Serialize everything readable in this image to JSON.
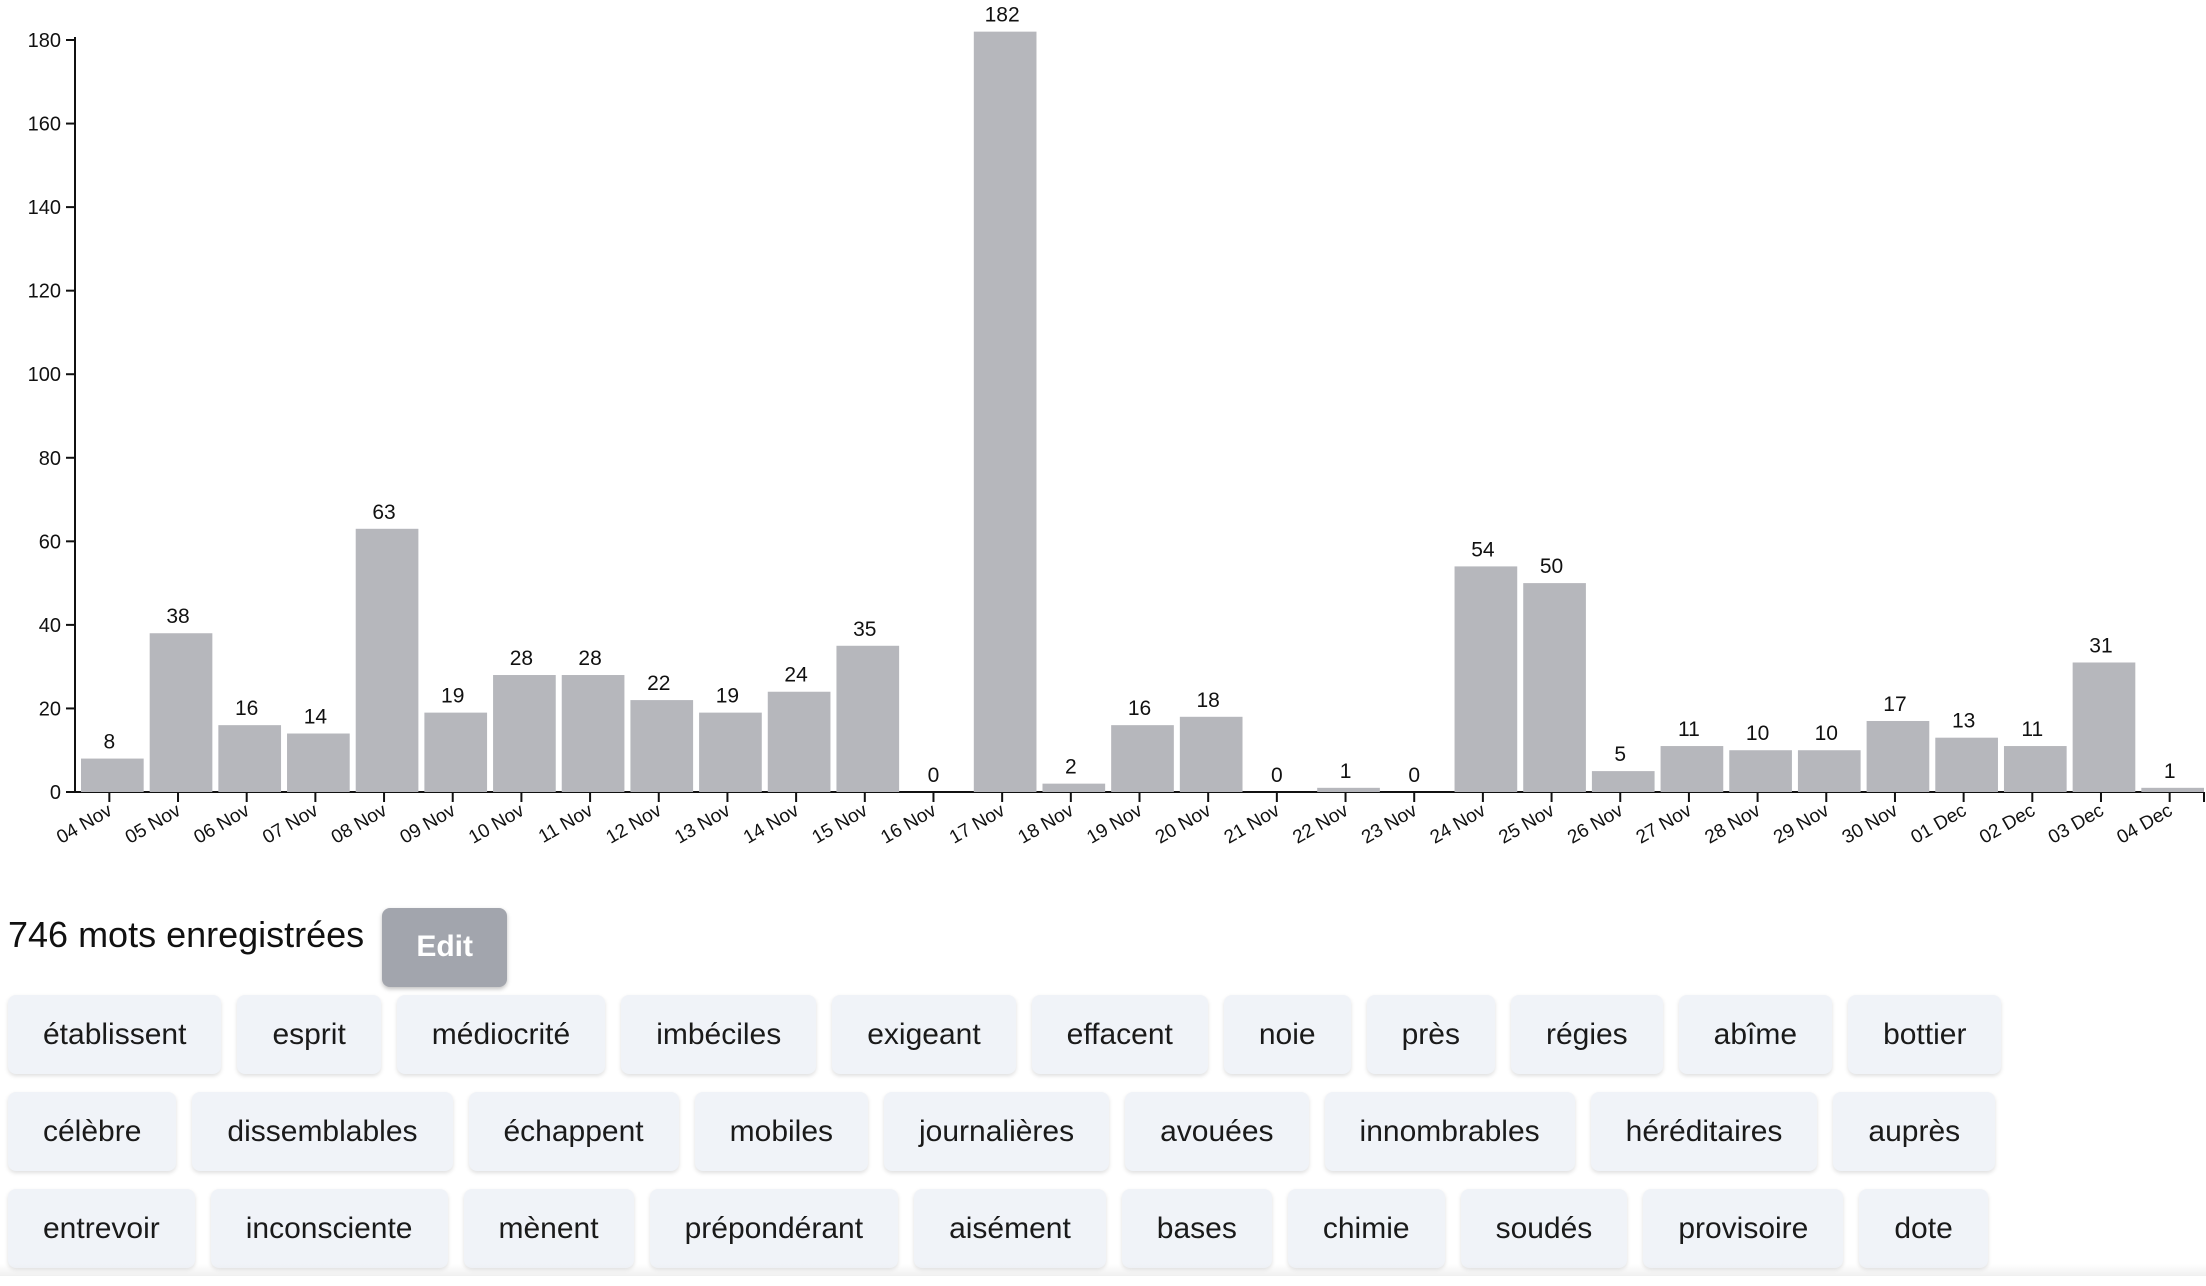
{
  "chart_data": {
    "type": "bar",
    "title": "",
    "xlabel": "",
    "ylabel": "",
    "ylim": [
      0,
      182
    ],
    "yticks": [
      0,
      20,
      40,
      60,
      80,
      100,
      120,
      140,
      160,
      180
    ],
    "grid": false,
    "bar_color": "#b6b7bc",
    "categories": [
      "04 Nov",
      "05 Nov",
      "06 Nov",
      "07 Nov",
      "08 Nov",
      "09 Nov",
      "10 Nov",
      "11 Nov",
      "12 Nov",
      "13 Nov",
      "14 Nov",
      "15 Nov",
      "16 Nov",
      "17 Nov",
      "18 Nov",
      "19 Nov",
      "20 Nov",
      "21 Nov",
      "22 Nov",
      "23 Nov",
      "24 Nov",
      "25 Nov",
      "26 Nov",
      "27 Nov",
      "28 Nov",
      "29 Nov",
      "30 Nov",
      "01 Dec",
      "02 Dec",
      "03 Dec",
      "04 Dec"
    ],
    "values": [
      8,
      38,
      16,
      14,
      63,
      19,
      28,
      28,
      22,
      19,
      24,
      35,
      0,
      182,
      2,
      16,
      18,
      0,
      1,
      0,
      54,
      50,
      5,
      11,
      10,
      10,
      17,
      13,
      11,
      31,
      1
    ]
  },
  "summary": {
    "text": "746 mots enregistrées",
    "edit_label": "Edit"
  },
  "words": [
    [
      "établissent",
      "esprit",
      "médiocrité",
      "imbéciles",
      "exigeant",
      "effacent",
      "noie",
      "près",
      "régies",
      "abîme",
      "bottier"
    ],
    [
      "célèbre",
      "dissemblables",
      "échappent",
      "mobiles",
      "journalières",
      "avouées",
      "innombrables",
      "héréditaires",
      "auprès"
    ],
    [
      "entrevoir",
      "inconsciente",
      "mènent",
      "prépondérant",
      "aisément",
      "bases",
      "chimie",
      "soudés",
      "provisoire",
      "dote"
    ]
  ]
}
